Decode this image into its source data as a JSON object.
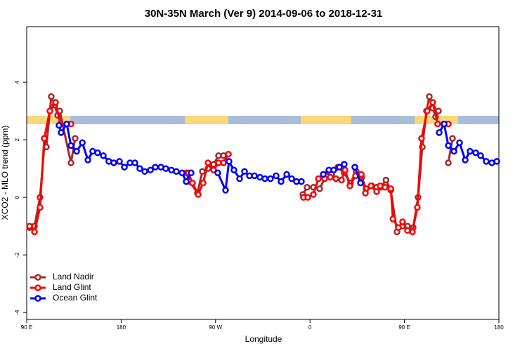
{
  "chart_data": {
    "type": "line",
    "title": "30N-35N March (Ver 9)   2014-09-06 to 2018-12-31",
    "x_label": "Longitude",
    "y_label": "XCO2 - MLO trend (ppm)",
    "xlim": [
      90,
      540
    ],
    "ylim": [
      -4.24,
      5.93
    ],
    "xticks": [
      {
        "value": 90,
        "label": "90 E"
      },
      180,
      {
        "value": 270,
        "label": "90 W"
      },
      {
        "value": 360,
        "label": "0"
      },
      {
        "value": 450,
        "label": "90 E"
      },
      {
        "value": 540,
        "label": "180"
      }
    ],
    "yticks": [
      -4,
      -2,
      0,
      2,
      4
    ],
    "legend": "bottom-left",
    "series": [
      {
        "name": "Land Nadir",
        "color": "#a52a2a",
        "x": [
          92.7,
          97.4,
          102.7,
          107.4,
          108.7,
          113.4,
          116.8,
          119.5,
          121.5,
          132.2,
          136.2,
          null,
          242.0,
          245.3,
          252.7,
          257.4,
          262.8,
          268.1,
          272.8,
          277.5,
          null,
          353.2,
          357.2,
          363.2,
          369.2,
          375.2,
          380.6,
          386.6,
          392.6,
          398.6,
          404.0,
          409.4,
          413.4,
          418.8,
          423.5,
          427.5,
          432.4,
          437.0,
          442.9,
          448.2,
          452.9,
          458.3,
          463.0,
          467.0,
          471.0,
          473.7,
          477.0,
          479.7,
          482.4,
          null,
          491.8,
          495.8
        ],
        "values": [
          -1.05,
          -1.0,
          0.0,
          2.05,
          1.75,
          3.5,
          3.2,
          2.85,
          3.0,
          1.2,
          2.05,
          null,
          0.85,
          0.55,
          0.15,
          0.9,
          1.0,
          1.15,
          1.45,
          1.45,
          null,
          0.1,
          0.35,
          0.35,
          0.3,
          0.75,
          0.8,
          1.05,
          0.85,
          0.5,
          0.9,
          0.7,
          0.3,
          0.4,
          0.35,
          0.35,
          0.6,
          0.25,
          -1.2,
          -1.0,
          -1.0,
          -1.05,
          0.0,
          1.75,
          3.0,
          3.5,
          3.1,
          2.8,
          3.0,
          null,
          1.2,
          2.05
        ]
      },
      {
        "name": "Land Glint",
        "color": "#ff0000",
        "x": [
          92.7,
          97.4,
          102.7,
          106.7,
          112.1,
          117.5,
          122.1,
          132.2,
          null,
          244.0,
          248.0,
          253.4,
          258.1,
          262.8,
          268.1,
          272.8,
          277.5,
          282.2,
          null,
          353.8,
          357.9,
          363.2,
          368.0,
          374.0,
          379.3,
          384.7,
          390.0,
          393.4,
          398.0,
          403.4,
          408.8,
          412.8,
          418.1,
          423.5,
          426.8,
          431.5,
          437.0,
          439.0,
          444.2,
          448.2,
          452.9,
          457.6,
          462.3,
          466.3,
          471.7,
          477.0,
          481.7,
          491.8
        ],
        "values": [
          -1.0,
          -1.2,
          -0.35,
          2.05,
          3.0,
          3.3,
          2.55,
          2.55,
          null,
          0.85,
          0.5,
          0.1,
          0.5,
          1.2,
          0.95,
          1.2,
          1.2,
          1.5,
          null,
          0.0,
          0.0,
          0.1,
          0.65,
          0.65,
          0.7,
          0.65,
          0.6,
          0.95,
          0.4,
          0.75,
          0.8,
          0.15,
          0.4,
          0.2,
          0.4,
          0.35,
          0.3,
          -0.75,
          -1.05,
          -0.85,
          -1.15,
          -1.2,
          -0.35,
          2.05,
          3.0,
          3.3,
          2.55,
          2.55
        ]
      },
      {
        "name": "Ocean Glint",
        "color": "#0000ff",
        "x": [
          120.8,
          122.8,
          128.2,
          132.2,
          137.6,
          143.0,
          148.3,
          152.9,
          157.6,
          163.0,
          168.3,
          173.0,
          178.4,
          183.1,
          188.4,
          193.1,
          197.8,
          202.5,
          207.9,
          212.5,
          217.9,
          222.6,
          227.9,
          232.6,
          238.0,
          242.0,
          246.7,
          null,
          272.1,
          279.5,
          282.8,
          287.5,
          292.9,
          297.6,
          302.3,
          307.0,
          312.3,
          317.0,
          322.3,
          327.7,
          332.4,
          337.8,
          342.5,
          347.1,
          351.8,
          null,
          372.6,
          378.0,
          382.6,
          388.0,
          392.6,
          null,
          402.7,
          408.1,
          null,
          483.1,
          487.8,
          491.8,
          497.2,
          502.5,
          507.9,
          512.5,
          517.9,
          522.6,
          527.9,
          533.3,
          538.0
        ],
        "values": [
          2.5,
          2.25,
          2.55,
          1.8,
          1.6,
          1.9,
          1.3,
          1.6,
          1.55,
          1.45,
          1.25,
          1.2,
          1.25,
          1.05,
          1.2,
          1.2,
          1.0,
          0.9,
          0.95,
          1.05,
          1.05,
          1.0,
          0.95,
          0.9,
          0.85,
          0.55,
          0.85,
          null,
          0.85,
          0.25,
          1.25,
          0.95,
          0.65,
          0.9,
          0.75,
          0.75,
          0.7,
          0.65,
          0.65,
          0.75,
          0.55,
          0.8,
          0.65,
          0.55,
          0.55,
          null,
          0.8,
          0.95,
          0.95,
          1.05,
          1.15,
          null,
          1.05,
          0.5,
          null,
          2.25,
          2.55,
          1.8,
          1.6,
          1.9,
          1.3,
          1.6,
          1.55,
          1.45,
          1.25,
          1.2,
          1.25
        ]
      }
    ]
  }
}
